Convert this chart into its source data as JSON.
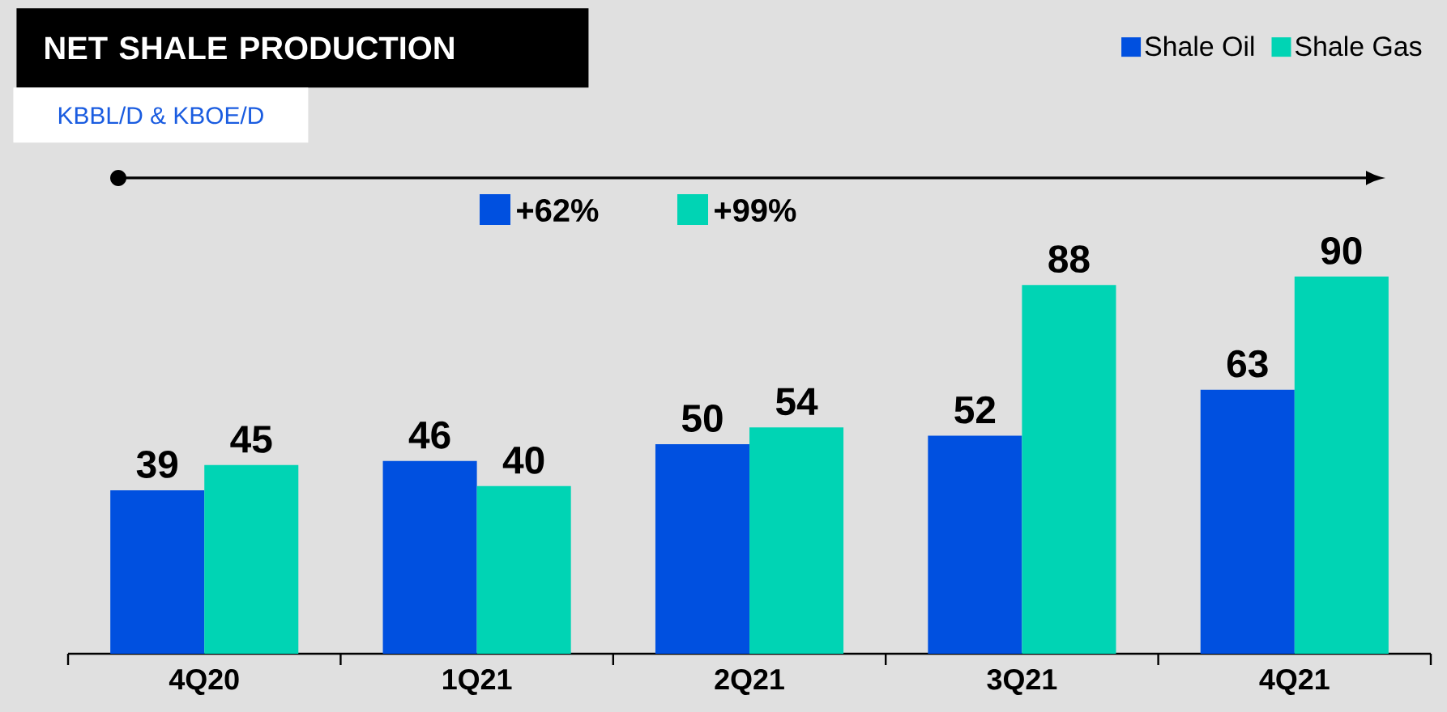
{
  "chart_data": {
    "type": "bar",
    "title": "NET SHALE PRODUCTION",
    "subtitle": "KBBL/D & KBOE/D",
    "categories": [
      "4Q20",
      "1Q21",
      "2Q21",
      "3Q21",
      "4Q21"
    ],
    "series": [
      {
        "name": "Shale Oil",
        "color": "#0050e0",
        "values": [
          39,
          46,
          50,
          52,
          63
        ]
      },
      {
        "name": "Shale Gas",
        "color": "#00d4b4",
        "values": [
          45,
          40,
          54,
          88,
          90
        ]
      }
    ],
    "data_labels": true,
    "legend": "top right",
    "annotations": [
      "+62%",
      "+99%"
    ]
  }
}
